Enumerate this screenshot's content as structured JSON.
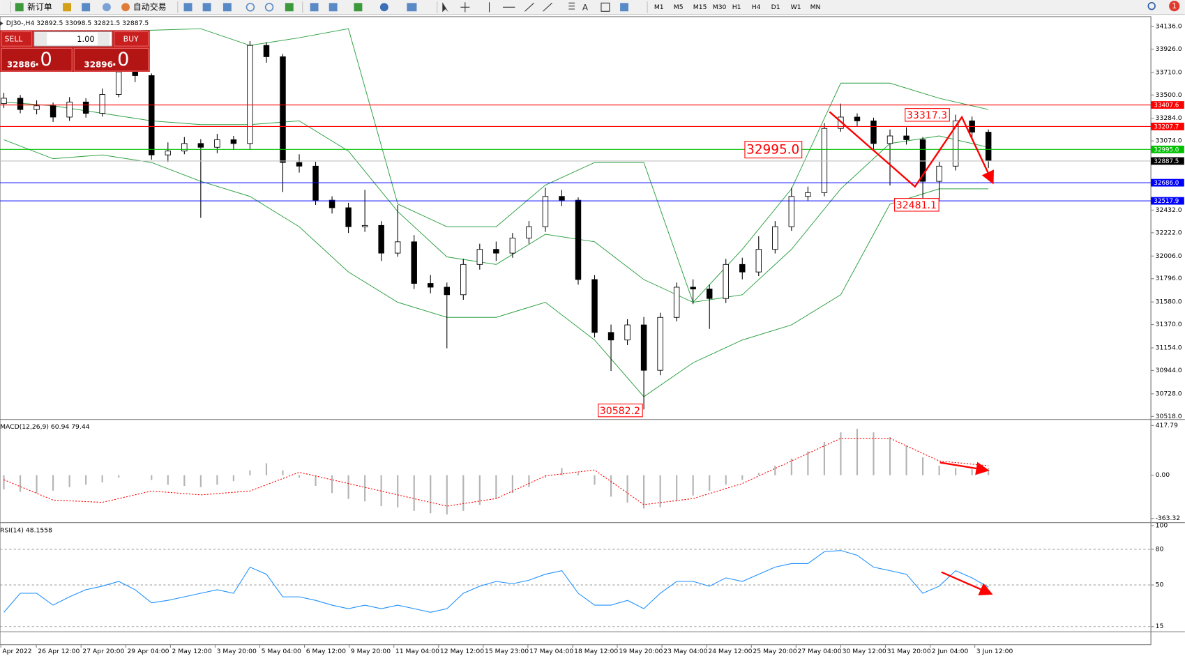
{
  "toolbar": {
    "new_order": "新订单",
    "auto_trade": "自动交易",
    "timeframes": [
      "M1",
      "M5",
      "M15",
      "M30",
      "H1",
      "H4",
      "D1",
      "W1",
      "MN"
    ]
  },
  "notification_count": 1,
  "order_panel": {
    "sell": "SELL",
    "buy": "BUY",
    "lots": "1.00",
    "sell_price": "32886",
    "sell_digits": ".0",
    "buy_price": "32896",
    "buy_digits": ".0"
  },
  "chart_data": [
    {
      "type": "candlestick",
      "title": "DJ30-,H4  32892.5 33098.5 32821.5 32887.5",
      "xlim": [
        -0.23,
        69.9
      ],
      "ylim": [
        30504,
        34213
      ],
      "yticks": [
        {
          "value": 34136,
          "label": "34136.0"
        },
        {
          "value": 33926,
          "label": "33926.0"
        },
        {
          "value": 33710,
          "label": "33710.0"
        },
        {
          "value": 33500,
          "label": "33500.0"
        },
        {
          "value": 33284,
          "label": "33284.0"
        },
        {
          "value": 33074,
          "label": "33074.0"
        },
        {
          "value": 32432,
          "label": "32432.0"
        },
        {
          "value": 32222,
          "label": "32222.0"
        },
        {
          "value": 32006,
          "label": "32006.0"
        },
        {
          "value": 31796,
          "label": "31796.0"
        },
        {
          "value": 31580,
          "label": "31580.0"
        },
        {
          "value": 31370,
          "label": "31370.0"
        },
        {
          "value": 31154,
          "label": "31154.0"
        },
        {
          "value": 30944,
          "label": "30944.0"
        },
        {
          "value": 30728,
          "label": "30728.0"
        },
        {
          "value": 30518,
          "label": "30518.0"
        }
      ],
      "ohlc": [
        [
          33420,
          33520,
          33380,
          33470
        ],
        [
          33470,
          33500,
          33330,
          33365
        ],
        [
          33365,
          33450,
          33320,
          33400
        ],
        [
          33400,
          33430,
          33250,
          33295
        ],
        [
          33295,
          33480,
          33260,
          33435
        ],
        [
          33435,
          33470,
          33290,
          33330
        ],
        [
          33330,
          33560,
          33300,
          33505
        ],
        [
          33505,
          33760,
          33480,
          33715
        ],
        [
          33715,
          33740,
          33620,
          33680
        ],
        [
          33680,
          33700,
          32900,
          32944
        ],
        [
          32944,
          33060,
          32880,
          32980
        ],
        [
          32980,
          33110,
          32950,
          33050
        ],
        [
          33050,
          33090,
          32360,
          33015
        ],
        [
          33015,
          33140,
          32960,
          33085
        ],
        [
          33085,
          33120,
          32990,
          33050
        ],
        [
          33050,
          34000,
          32990,
          33960
        ],
        [
          33960,
          33990,
          33800,
          33855
        ],
        [
          33855,
          33880,
          32600,
          32874
        ],
        [
          32874,
          32950,
          32780,
          32840
        ],
        [
          32840,
          32880,
          32480,
          32524
        ],
        [
          32524,
          32560,
          32400,
          32454
        ],
        [
          32454,
          32500,
          32220,
          32278
        ],
        [
          32278,
          32620,
          32230,
          32290
        ],
        [
          32290,
          32330,
          31960,
          32033
        ],
        [
          32033,
          32480,
          32000,
          32138
        ],
        [
          32138,
          32200,
          31700,
          31752
        ],
        [
          31752,
          31830,
          31660,
          31717
        ],
        [
          31717,
          31760,
          31150,
          31647
        ],
        [
          31647,
          31980,
          31600,
          31928
        ],
        [
          31928,
          32120,
          31880,
          32068
        ],
        [
          32068,
          32140,
          31960,
          32033
        ],
        [
          32033,
          32220,
          31990,
          32173
        ],
        [
          32173,
          32330,
          32120,
          32278
        ],
        [
          32278,
          32640,
          32230,
          32559
        ],
        [
          32559,
          32620,
          32470,
          32524
        ],
        [
          32524,
          32550,
          31740,
          31788
        ],
        [
          31788,
          31830,
          31250,
          31297
        ],
        [
          31297,
          31370,
          30940,
          31227
        ],
        [
          31227,
          31420,
          31180,
          31367
        ],
        [
          31367,
          31440,
          30582.2,
          30946
        ],
        [
          30946,
          31480,
          30900,
          31437
        ],
        [
          31437,
          31760,
          31400,
          31717
        ],
        [
          31717,
          31790,
          31560,
          31700
        ],
        [
          31700,
          31740,
          31330,
          31612
        ],
        [
          31612,
          31980,
          31570,
          31928
        ],
        [
          31928,
          31990,
          31790,
          31858
        ],
        [
          31858,
          32190,
          31820,
          32068
        ],
        [
          32068,
          32330,
          32030,
          32278
        ],
        [
          32278,
          32640,
          32240,
          32559
        ],
        [
          32559,
          32650,
          32520,
          32594
        ],
        [
          32594,
          33240,
          32560,
          33190
        ],
        [
          33190,
          33420,
          33160,
          33295
        ],
        [
          33295,
          33330,
          33210,
          33260
        ],
        [
          33260,
          33290,
          32980,
          33050
        ],
        [
          33050,
          33180,
          32660,
          33120
        ],
        [
          33120,
          33200,
          33040,
          33085
        ],
        [
          33085,
          33110,
          32481.1,
          32699
        ],
        [
          32699,
          32880,
          32520,
          32840
        ],
        [
          32840,
          33317.3,
          32800,
          33260
        ],
        [
          33260,
          33300,
          33100,
          33155
        ],
        [
          33155,
          33180,
          32821.5,
          32887.5
        ]
      ],
      "bollinger": {
        "color": "#2ea043",
        "x": [
          0,
          3,
          6,
          9,
          12,
          15,
          18,
          21,
          24,
          27,
          30,
          33,
          36,
          39,
          42,
          45,
          48,
          51,
          54,
          57,
          60
        ],
        "upper": [
          33960,
          34031,
          34087,
          34101,
          34115,
          33960,
          34031,
          34115,
          32489,
          32278,
          32278,
          32664,
          32874,
          32874,
          31577,
          32068,
          32629,
          33610,
          33610,
          33470,
          33365
        ],
        "middle": [
          33435,
          33400,
          33330,
          33260,
          33225,
          33225,
          33260,
          32980,
          32419,
          31998,
          31928,
          32208,
          32138,
          31788,
          31577,
          31647,
          32068,
          32629,
          33050,
          33120,
          33015
        ],
        "lower": [
          33085,
          32909,
          32944,
          32874,
          32699,
          32559,
          32278,
          31858,
          31577,
          31437,
          31437,
          31577,
          31227,
          30701,
          31016,
          31227,
          31367,
          31647,
          32489,
          32629,
          32629
        ]
      },
      "price_lines": [
        {
          "value": 33407.6,
          "color": "#ff0000"
        },
        {
          "value": 33207.7,
          "color": "#ff0000"
        },
        {
          "value": 32995,
          "label": "32995.0",
          "color": "#00c000"
        },
        {
          "value": 32887.5,
          "color": "#c0c0c0",
          "box": "#000000"
        },
        {
          "value": 32686,
          "label": "32686.0",
          "color": "#0000ff"
        },
        {
          "value": 32517.9,
          "color": "#0000ff"
        }
      ],
      "annotations": [
        "33317.3",
        "32995.0",
        "32481.1",
        "30582.2"
      ],
      "xlabels": [
        "Apr 2022",
        "26 Apr 12:00",
        "27 Apr 20:00",
        "29 Apr 04:00",
        "2 May 12:00",
        "3 May 20:00",
        "5 May 04:00",
        "6 May 12:00",
        "9 May 20:00",
        "11 May 04:00",
        "12 May 12:00",
        "15 May 23:00",
        "17 May 04:00",
        "18 May 12:00",
        "19 May 20:00",
        "23 May 04:00",
        "24 May 12:00",
        "25 May 20:00",
        "27 May 04:00",
        "30 May 12:00",
        "31 May 20:00",
        "2 Jun 04:00",
        "3 Jun 12:00"
      ]
    },
    {
      "type": "macd",
      "title": "MACD(12,26,9) 60.94 79.44",
      "ylim": [
        -388.6,
        455.8
      ],
      "yticks": [
        417.79,
        {
          "value": 0,
          "label": "0.00"
        },
        -363.32
      ],
      "histogram": {
        "color": "#b4b4b4",
        "values": [
          -120,
          -140,
          -150,
          -130,
          -100,
          -80,
          -60,
          -20,
          0,
          -40,
          -80,
          -90,
          -100,
          -80,
          -50,
          40,
          100,
          40,
          -20,
          -90,
          -150,
          -200,
          -220,
          -260,
          -270,
          -300,
          -320,
          -330,
          -300,
          -250,
          -200,
          -150,
          -100,
          -20,
          60,
          20,
          -80,
          -180,
          -230,
          -280,
          -270,
          -220,
          -170,
          -130,
          -80,
          -40,
          20,
          80,
          140,
          200,
          280,
          360,
          390,
          360,
          320,
          250,
          150,
          80,
          60,
          50,
          60.94
        ]
      },
      "signal": {
        "color": "#ff0000",
        "x": [
          0,
          3,
          6,
          9,
          12,
          15,
          18,
          21,
          24,
          27,
          30,
          33,
          36,
          39,
          42,
          45,
          48,
          51,
          54,
          57,
          60
        ],
        "values": [
          -38,
          -209,
          -228,
          -133,
          -165,
          -133,
          25,
          -70,
          -165,
          -260,
          -196,
          -6,
          44,
          -247,
          -196,
          -70,
          120,
          310,
          310,
          120,
          79.44
        ]
      }
    },
    {
      "type": "line",
      "title": "RSI(14) 48.1558",
      "ylim": [
        11.2,
        101.5
      ],
      "yticks": [
        100,
        80,
        50,
        15
      ],
      "grid_levels": [
        80,
        50,
        15
      ],
      "color": "#1e90ff",
      "values": [
        27,
        43,
        43,
        33,
        40,
        46,
        49,
        53,
        46,
        35,
        37,
        40,
        43,
        46,
        43,
        65,
        59,
        40,
        40,
        37,
        33,
        30,
        33,
        30,
        33,
        30,
        27,
        30,
        43,
        49,
        53,
        51,
        54,
        59,
        62,
        43,
        33,
        33,
        37,
        30,
        43,
        53,
        53,
        49,
        56,
        53,
        59,
        65,
        68,
        68,
        78,
        79,
        75,
        65,
        62,
        59,
        43,
        49,
        62,
        56,
        48.1558
      ]
    }
  ]
}
